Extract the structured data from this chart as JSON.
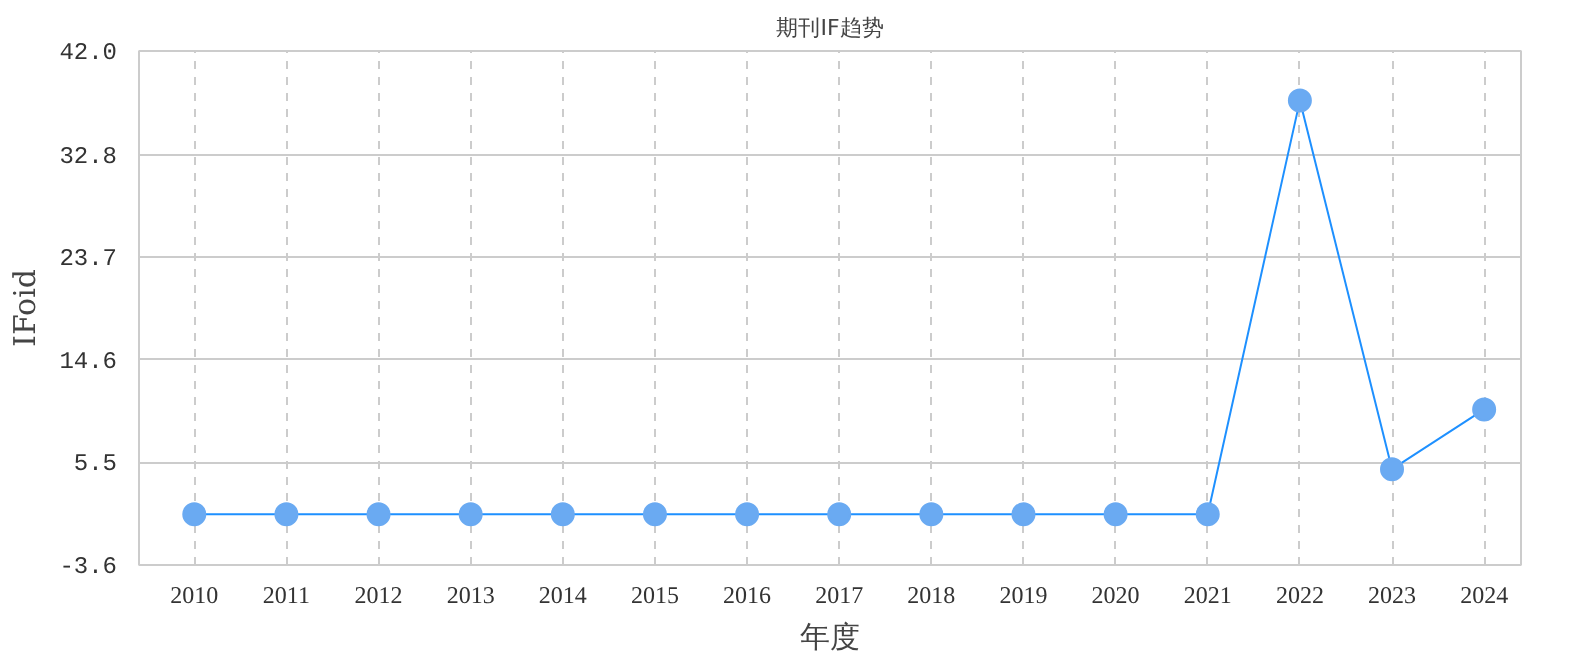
{
  "chart_data": {
    "type": "line",
    "title": "期刊IF趋势",
    "xlabel": "年度",
    "ylabel": "IFoid",
    "categories": [
      "2010",
      "2011",
      "2012",
      "2013",
      "2014",
      "2015",
      "2016",
      "2017",
      "2018",
      "2019",
      "2020",
      "2021",
      "2022",
      "2023",
      "2024"
    ],
    "series": [
      {
        "color": "#1e90ff",
        "values": [
          0.9,
          0.9,
          0.9,
          0.9,
          0.9,
          0.9,
          0.9,
          0.9,
          0.9,
          0.9,
          0.9,
          0.9,
          37.6,
          4.9,
          10.2
        ]
      }
    ],
    "ylim": [
      -3.6,
      42.0
    ],
    "yticks": [
      -3.6,
      5.5,
      14.6,
      23.7,
      32.8,
      {
        "value": 42.0,
        "label": "42.0"
      }
    ],
    "grid": true,
    "marker": "circle",
    "line_style": "solid"
  }
}
